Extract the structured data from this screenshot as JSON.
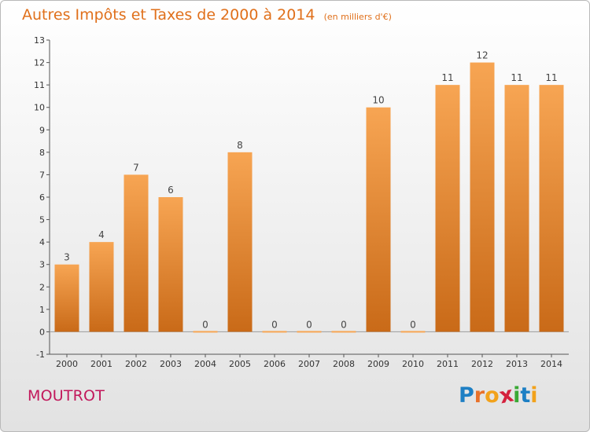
{
  "chart_data": {
    "type": "bar",
    "title": "Autres Impôts et Taxes de 2000 à 2014",
    "unit_label": "(en milliers d'€)",
    "categories": [
      "2000",
      "2001",
      "2002",
      "2003",
      "2004",
      "2005",
      "2006",
      "2007",
      "2008",
      "2009",
      "2010",
      "2011",
      "2012",
      "2013",
      "2014"
    ],
    "values": [
      3,
      4,
      7,
      6,
      0,
      8,
      0,
      0,
      0,
      10,
      0,
      11,
      12,
      11,
      11
    ],
    "ylim": [
      -1,
      13
    ],
    "yticks": [
      -1,
      0,
      1,
      2,
      3,
      4,
      5,
      6,
      7,
      8,
      9,
      10,
      11,
      12,
      13
    ],
    "xlabel": "",
    "ylabel": "",
    "grid": false,
    "bar_color_top": "#f7a553",
    "bar_color_bottom": "#c96a18"
  },
  "footer": {
    "commune": "MOUTROT",
    "logo": [
      "P",
      "r",
      "o",
      "x",
      "i",
      "t",
      "i"
    ],
    "logo_colors": [
      "#1d7fc4",
      "#e8712a",
      "#f2a21b",
      "#d4213d",
      "#3aa935",
      "#1d7fc4",
      "#f2a21b"
    ]
  },
  "colors": {
    "title": "#e0701b",
    "commune": "#c2185b",
    "axis": "#555555"
  }
}
